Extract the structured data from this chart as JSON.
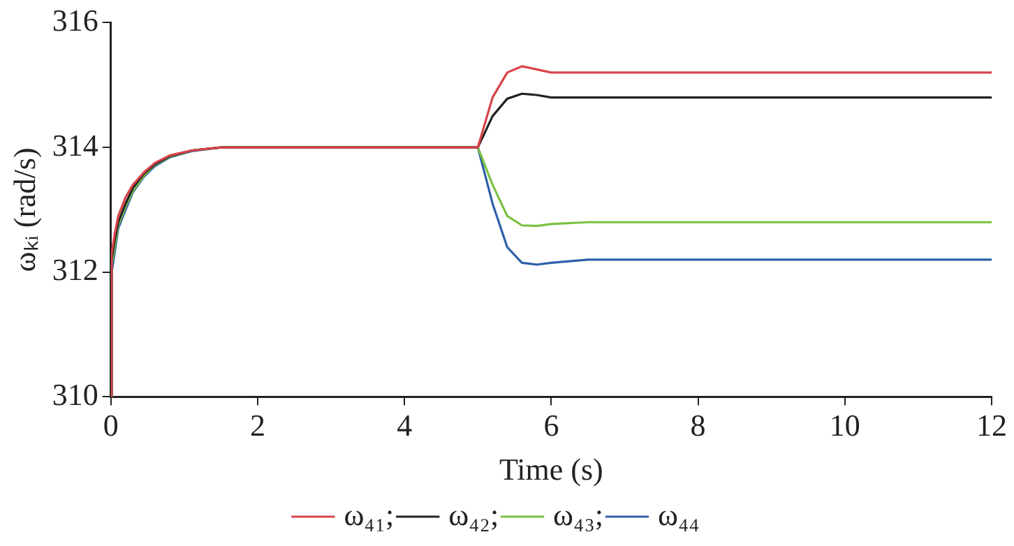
{
  "chart_data": {
    "type": "line",
    "xlabel": "Time (s)",
    "ylabel": "ωₖᵢ (rad/s)",
    "x": [
      0,
      0.01,
      0.05,
      0.1,
      0.2,
      0.3,
      0.45,
      0.6,
      0.8,
      1.1,
      1.5,
      2,
      5,
      5.2,
      5.4,
      5.6,
      5.8,
      6,
      6.5,
      7,
      12
    ],
    "series": [
      {
        "name": "ω₄₁;",
        "color": "#d9434a",
        "values": [
          310,
          312.3,
          312.6,
          312.9,
          313.2,
          313.4,
          313.6,
          313.75,
          313.87,
          313.95,
          314,
          314,
          314,
          314.8,
          315.2,
          315.3,
          315.25,
          315.2,
          315.2,
          315.2,
          315.2
        ]
      },
      {
        "name": "ω₄₂;",
        "color": "#222222",
        "values": [
          310,
          312.2,
          312.5,
          312.8,
          313.1,
          313.35,
          313.58,
          313.73,
          313.86,
          313.95,
          314,
          314,
          314,
          314.5,
          314.78,
          314.86,
          314.84,
          314.8,
          314.8,
          314.8,
          314.8
        ]
      },
      {
        "name": "ω₄₃;",
        "color": "#7ac143",
        "values": [
          310,
          312.1,
          312.4,
          312.75,
          313.05,
          313.3,
          313.55,
          313.72,
          313.85,
          313.95,
          314,
          314,
          314,
          313.4,
          312.9,
          312.75,
          312.74,
          312.77,
          312.8,
          312.8,
          312.8
        ]
      },
      {
        "name": "ω₄₄",
        "color": "#2e5fa8",
        "values": [
          310,
          312,
          312.3,
          312.7,
          313,
          313.28,
          313.53,
          313.7,
          313.84,
          313.94,
          314,
          314,
          314,
          313.1,
          312.4,
          312.15,
          312.12,
          312.15,
          312.2,
          312.2,
          312.2
        ]
      }
    ],
    "xlim": [
      0,
      12
    ],
    "xticks": [
      0,
      2,
      4,
      6,
      8,
      10,
      12
    ],
    "ylim": [
      310,
      316
    ],
    "yticks": [
      310,
      312,
      314,
      316
    ],
    "grid": false,
    "legend": "bottom",
    "marker": "none",
    "line_style": "solid"
  }
}
